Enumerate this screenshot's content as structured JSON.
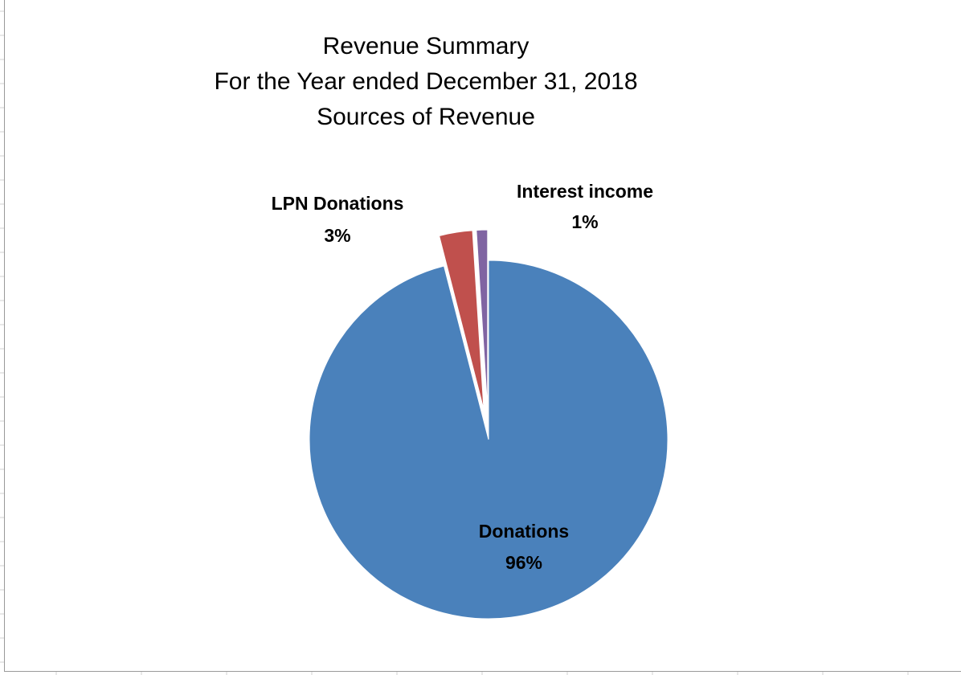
{
  "chart_data": {
    "type": "pie",
    "title": [
      "Revenue Summary",
      "For the Year ended December 31, 2018",
      "Sources of Revenue"
    ],
    "categories": [
      "Donations",
      "LPN Donations",
      "Interest income"
    ],
    "values": [
      96,
      3,
      1
    ],
    "value_labels": [
      "96%",
      "3%",
      "1%"
    ],
    "exploded": [
      false,
      true,
      true
    ],
    "colors": [
      "#4a81bb",
      "#c0504d",
      "#8064a2"
    ],
    "legend": "none",
    "label_style": "name-and-percent"
  }
}
